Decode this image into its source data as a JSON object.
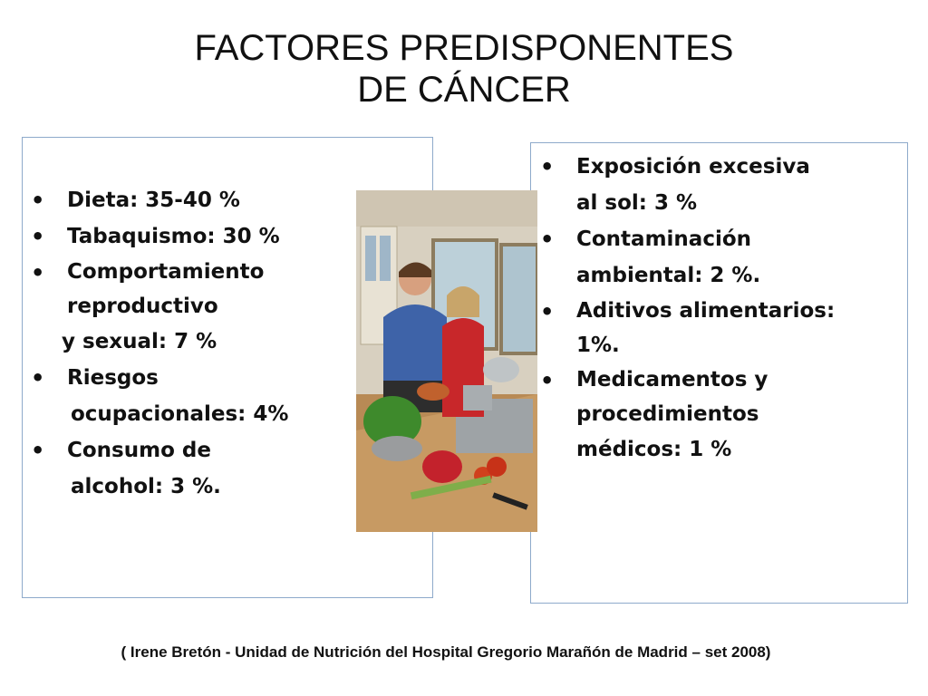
{
  "slide": {
    "title_line1": "FACTORES PREDISPONENTES",
    "title_line2": "DE CÁNCER",
    "left_list": {
      "dieta": "Dieta:  35-40 %",
      "tabaquismo": "Tabaquismo: 30 %",
      "comportamiento_1": "Comportamiento",
      "comportamiento_2": "reproductivo",
      "comportamiento_3": "y sexual: 7 %",
      "riesgos_1": "Riesgos",
      "riesgos_2": "ocupacionales: 4%",
      "consumo_1": "Consumo de",
      "consumo_2": "alcohol: 3 %."
    },
    "right_list": {
      "exposicion_1": "Exposición excesiva",
      "exposicion_2": "al sol:  3 %",
      "contaminacion_1": "Contaminación",
      "contaminacion_2": "ambiental: 2 %.",
      "aditivos_1": "Aditivos alimentarios:",
      "aditivos_2": "1%.",
      "medicamentos_1": "Medicamentos y",
      "medicamentos_2": "procedimientos",
      "medicamentos_3": "médicos: 1 %"
    },
    "bullet": "•",
    "citation": "( Irene Bretón - Unidad de Nutrición del Hospital Gregorio Marañón de Madrid – set 2008)"
  },
  "colors": {
    "box_border": "#8eaacb",
    "text": "#111111"
  }
}
